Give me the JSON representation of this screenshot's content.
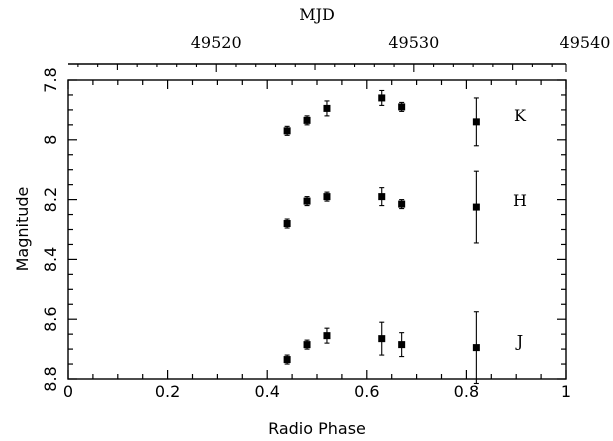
{
  "chart_data": {
    "type": "scatter",
    "xlabel": "Radio Phase",
    "ylabel": "Magnitude",
    "top_xlabel": "MJD",
    "xlim": [
      0,
      1
    ],
    "ylim": [
      8.8,
      7.8
    ],
    "y_inverted": true,
    "x_ticks": [
      "0",
      "0.2",
      "0.4",
      "0.6",
      "0.8",
      "1"
    ],
    "y_ticks": [
      "7.8",
      "8",
      "8.2",
      "8.4",
      "8.6",
      "8.8"
    ],
    "top_ticks": [
      "49520",
      "49530",
      "49540"
    ],
    "top_axis_range": [
      49512.5,
      49537.7
    ],
    "grid": false,
    "series": [
      {
        "name": "K",
        "x": [
          0.44,
          0.48,
          0.52,
          0.63,
          0.67,
          0.82
        ],
        "y": [
          7.97,
          7.935,
          7.895,
          7.86,
          7.89,
          7.94
        ],
        "err": [
          0.015,
          0.015,
          0.025,
          0.025,
          0.015,
          0.08
        ]
      },
      {
        "name": "H",
        "x": [
          0.44,
          0.48,
          0.52,
          0.63,
          0.67,
          0.82
        ],
        "y": [
          8.28,
          8.205,
          8.19,
          8.19,
          8.215,
          8.225
        ],
        "err": [
          0.015,
          0.015,
          0.015,
          0.03,
          0.015,
          0.12
        ]
      },
      {
        "name": "J",
        "x": [
          0.44,
          0.48,
          0.52,
          0.63,
          0.67,
          0.82
        ],
        "y": [
          8.735,
          8.685,
          8.655,
          8.665,
          8.685,
          8.695
        ],
        "err": [
          0.015,
          0.015,
          0.025,
          0.055,
          0.04,
          0.12
        ]
      }
    ]
  }
}
